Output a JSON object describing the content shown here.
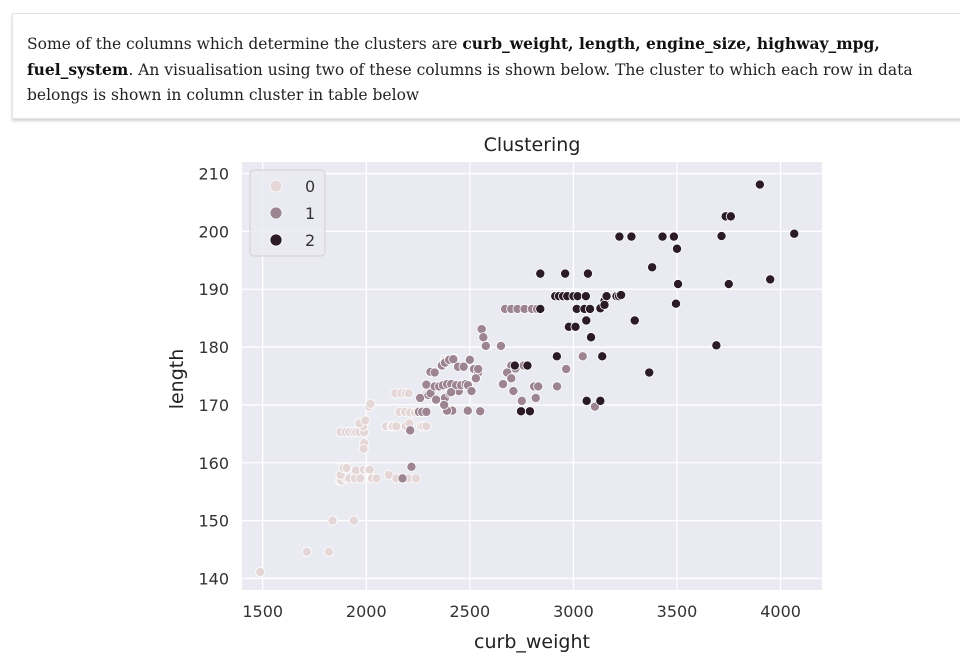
{
  "description": {
    "text_before": "Some of the columns which determine the clusters are ",
    "bold_columns": "curb_weight, length, engine_size, highway_mpg, fuel_system",
    "text_after": ". An visualisation using two of these columns is shown below. The cluster to which each row in data belongs is shown in column cluster in table below"
  },
  "chart_data": {
    "type": "scatter",
    "title": "Clustering",
    "xlabel": "curb_weight",
    "ylabel": "length",
    "xlim": [
      1400,
      4200
    ],
    "ylim": [
      138,
      212
    ],
    "xticks": [
      1500,
      2000,
      2500,
      3000,
      3500,
      4000
    ],
    "yticks": [
      140,
      150,
      160,
      170,
      180,
      190,
      200,
      210
    ],
    "grid": true,
    "legend_placement": "top-left",
    "legend": [
      "0",
      "1",
      "2"
    ],
    "colors": {
      "0": "#e5d7d8",
      "1": "#9c8490",
      "2": "#2a1b26"
    },
    "series": [
      {
        "name": "0",
        "points": [
          [
            1488,
            141.1
          ],
          [
            1713,
            144.6
          ],
          [
            1819,
            144.6
          ],
          [
            1837,
            150.0
          ],
          [
            1940,
            150.0
          ],
          [
            1874,
            156.9
          ],
          [
            1880,
            156.9
          ],
          [
            1900,
            157.3
          ],
          [
            1909,
            157.3
          ],
          [
            1918,
            157.3
          ],
          [
            1876,
            157.9
          ],
          [
            1890,
            159.1
          ],
          [
            1905,
            159.1
          ],
          [
            1945,
            157.3
          ],
          [
            1950,
            158.7
          ],
          [
            1971,
            157.3
          ],
          [
            1989,
            158.8
          ],
          [
            2010,
            158.8
          ],
          [
            2024,
            157.3
          ],
          [
            2028,
            157.3
          ],
          [
            2017,
            158.8
          ],
          [
            2050,
            157.3
          ],
          [
            2109,
            157.9
          ],
          [
            2145,
            157.3
          ],
          [
            2180,
            157.3
          ],
          [
            2204,
            157.3
          ],
          [
            2240,
            157.3
          ],
          [
            1876,
            165.3
          ],
          [
            1900,
            165.3
          ],
          [
            1918,
            165.3
          ],
          [
            1938,
            165.3
          ],
          [
            1951,
            165.3
          ],
          [
            1967,
            165.3
          ],
          [
            1989,
            165.3
          ],
          [
            1985,
            166.3
          ],
          [
            1967,
            166.8
          ],
          [
            1995,
            167.3
          ],
          [
            1990,
            163.4
          ],
          [
            1987,
            162.4
          ],
          [
            2015,
            169.7
          ],
          [
            2020,
            170.2
          ],
          [
            2095,
            166.3
          ],
          [
            2122,
            166.3
          ],
          [
            2128,
            166.3
          ],
          [
            2145,
            166.3
          ],
          [
            2190,
            166.3
          ],
          [
            2209,
            166.8
          ],
          [
            2265,
            166.3
          ],
          [
            2275,
            166.3
          ],
          [
            2290,
            166.3
          ],
          [
            2140,
            172.0
          ],
          [
            2169,
            172.0
          ],
          [
            2190,
            172.0
          ],
          [
            2205,
            172.0
          ],
          [
            2290,
            172.0
          ],
          [
            2160,
            168.8
          ],
          [
            2187,
            168.8
          ],
          [
            2212,
            168.7
          ],
          [
            2235,
            168.7
          ],
          [
            2253,
            168.8
          ],
          [
            2380,
            177.8
          ],
          [
            2395,
            177.8
          ],
          [
            2420,
            177.8
          ],
          [
            2425,
            178.0
          ],
          [
            2250,
            169.0
          ]
        ]
      },
      {
        "name": "1",
        "points": [
          [
            2218,
            159.3
          ],
          [
            2175,
            157.3
          ],
          [
            2212,
            165.6
          ],
          [
            2254,
            168.8
          ],
          [
            2270,
            168.8
          ],
          [
            2290,
            168.8
          ],
          [
            2260,
            171.2
          ],
          [
            2300,
            171.7
          ],
          [
            2310,
            172.0
          ],
          [
            2290,
            173.5
          ],
          [
            2330,
            173.2
          ],
          [
            2352,
            173.2
          ],
          [
            2370,
            173.4
          ],
          [
            2390,
            173.6
          ],
          [
            2410,
            173.6
          ],
          [
            2337,
            170.9
          ],
          [
            2380,
            171.2
          ],
          [
            2403,
            172.0
          ],
          [
            2420,
            172.4
          ],
          [
            2447,
            172.4
          ],
          [
            2434,
            173.4
          ],
          [
            2458,
            173.4
          ],
          [
            2480,
            173.6
          ],
          [
            2491,
            173.4
          ],
          [
            2310,
            175.7
          ],
          [
            2330,
            175.6
          ],
          [
            2365,
            176.8
          ],
          [
            2380,
            177.3
          ],
          [
            2400,
            177.8
          ],
          [
            2420,
            177.9
          ],
          [
            2443,
            176.6
          ],
          [
            2470,
            176.6
          ],
          [
            2500,
            177.8
          ],
          [
            2520,
            176.2
          ],
          [
            2540,
            175.6
          ],
          [
            2508,
            172.4
          ],
          [
            2529,
            174.6
          ],
          [
            2540,
            176.2
          ],
          [
            2557,
            183.1
          ],
          [
            2565,
            181.7
          ],
          [
            2577,
            180.2
          ],
          [
            2415,
            169.0
          ],
          [
            2490,
            169.0
          ],
          [
            2550,
            168.9
          ],
          [
            2660,
            173.6
          ],
          [
            2710,
            172.4
          ],
          [
            2670,
            186.6
          ],
          [
            2700,
            186.6
          ],
          [
            2730,
            186.6
          ],
          [
            2764,
            186.6
          ],
          [
            2800,
            186.6
          ],
          [
            2824,
            186.6
          ],
          [
            2650,
            180.2
          ],
          [
            2700,
            176.8
          ],
          [
            2720,
            176.3
          ],
          [
            2680,
            175.6
          ],
          [
            2700,
            174.6
          ],
          [
            2760,
            176.8
          ],
          [
            2810,
            173.2
          ],
          [
            2830,
            173.2
          ],
          [
            2751,
            170.7
          ],
          [
            2818,
            171.2
          ],
          [
            2921,
            173.2
          ],
          [
            2965,
            176.2
          ],
          [
            3045,
            178.4
          ],
          [
            3104,
            169.7
          ],
          [
            2390,
            169.0
          ],
          [
            2376,
            170.0
          ],
          [
            2409,
            172.2
          ]
        ]
      },
      {
        "name": "2",
        "points": [
          [
            2717,
            176.8
          ],
          [
            2778,
            176.8
          ],
          [
            2747,
            168.9
          ],
          [
            2790,
            168.9
          ],
          [
            2840,
            192.7
          ],
          [
            2840,
            186.6
          ],
          [
            2920,
            178.4
          ],
          [
            2912,
            188.8
          ],
          [
            2930,
            188.8
          ],
          [
            2950,
            188.8
          ],
          [
            2970,
            188.8
          ],
          [
            2960,
            192.7
          ],
          [
            3000,
            188.8
          ],
          [
            3020,
            188.8
          ],
          [
            3060,
            188.8
          ],
          [
            3016,
            186.6
          ],
          [
            3053,
            186.6
          ],
          [
            3080,
            186.6
          ],
          [
            3130,
            186.7
          ],
          [
            3150,
            188.0
          ],
          [
            3150,
            187.3
          ],
          [
            3160,
            188.8
          ],
          [
            3208,
            188.8
          ],
          [
            3220,
            188.8
          ],
          [
            3230,
            189.0
          ],
          [
            3070,
            192.7
          ],
          [
            2978,
            183.5
          ],
          [
            3010,
            183.5
          ],
          [
            3062,
            184.6
          ],
          [
            3085,
            181.7
          ],
          [
            3139,
            178.4
          ],
          [
            3064,
            170.7
          ],
          [
            3130,
            170.7
          ],
          [
            3222,
            199.1
          ],
          [
            3280,
            199.1
          ],
          [
            3296,
            184.6
          ],
          [
            3366,
            175.6
          ],
          [
            3380,
            193.8
          ],
          [
            3430,
            199.1
          ],
          [
            3485,
            199.1
          ],
          [
            3500,
            197.0
          ],
          [
            3505,
            190.9
          ],
          [
            3495,
            187.5
          ],
          [
            3690,
            180.3
          ],
          [
            3715,
            199.2
          ],
          [
            3735,
            202.6
          ],
          [
            3760,
            202.6
          ],
          [
            3750,
            190.9
          ],
          [
            3900,
            208.1
          ],
          [
            3950,
            191.7
          ],
          [
            4066,
            199.6
          ]
        ]
      }
    ]
  }
}
